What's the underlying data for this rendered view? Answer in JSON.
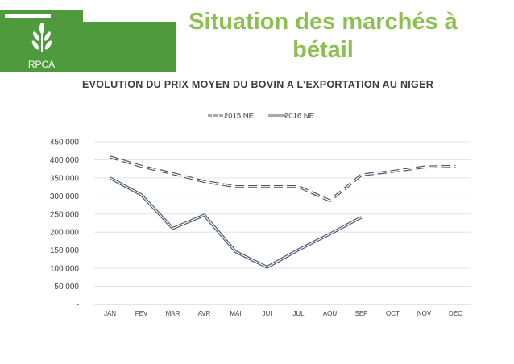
{
  "header": {
    "title_line1": "Situation des marchés à",
    "title_line2": "bétail",
    "logo_text": "RPCA"
  },
  "colors": {
    "brand_green": "#4f9a3d",
    "title_green": "#8cbf4f",
    "series_color": "#44546a"
  },
  "chart_data": {
    "type": "line",
    "title": "EVOLUTION DU PRIX MOYEN DU BOVIN A L’EXPORTATION AU NIGER",
    "categories": [
      "JAN",
      "FEV",
      "MAR",
      "AVR",
      "MAI",
      "JUI",
      "JUL",
      "AOU",
      "SEP",
      "OCT",
      "NOV",
      "DEC"
    ],
    "series": [
      {
        "name": "2015 NE",
        "style": "dashed",
        "values": [
          408000,
          382000,
          362000,
          340000,
          326000,
          326000,
          326000,
          287000,
          358000,
          368000,
          380000,
          382000
        ]
      },
      {
        "name": "2016 NE",
        "style": "solid",
        "values": [
          350000,
          303000,
          210000,
          247000,
          146000,
          103000,
          151000,
          195000,
          241000,
          null,
          null,
          null
        ]
      }
    ],
    "ylim": [
      0,
      450000
    ],
    "y_ticks": [
      0,
      50000,
      100000,
      150000,
      200000,
      250000,
      300000,
      350000,
      400000,
      450000
    ],
    "y_tick_labels": [
      "-",
      "50 000",
      "100 000",
      "150 000",
      "200 000",
      "250 000",
      "300 000",
      "350 000",
      "400 000",
      "450 000"
    ],
    "grid": true,
    "legend": "top-center"
  }
}
